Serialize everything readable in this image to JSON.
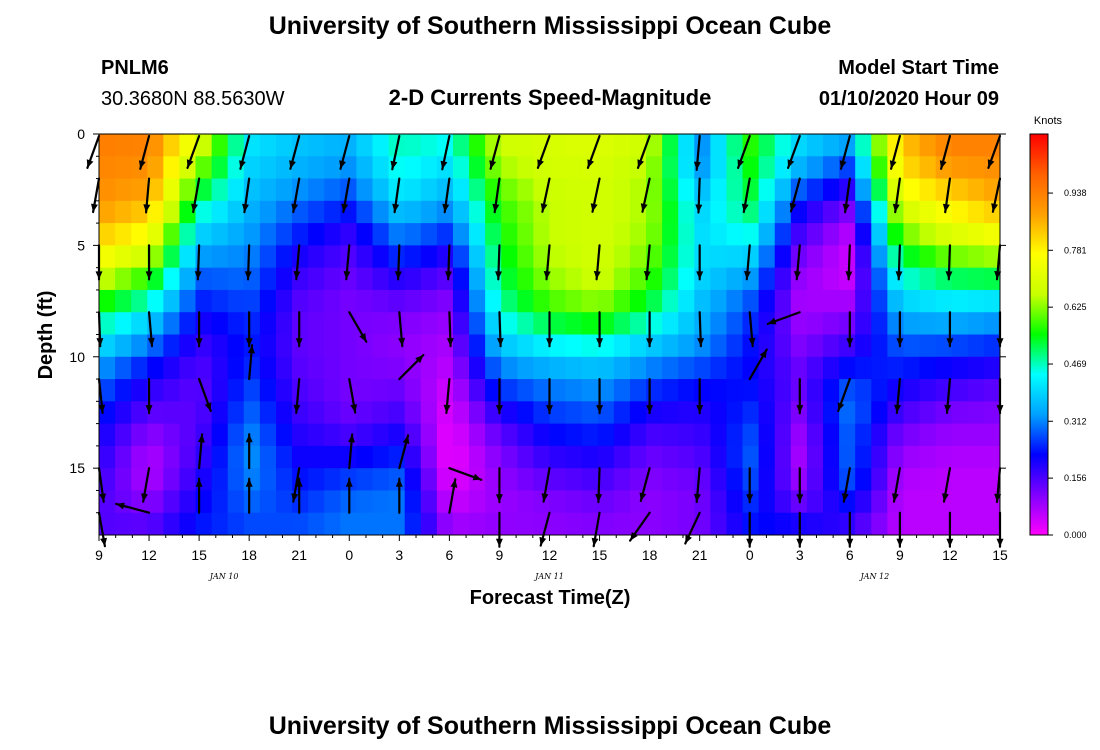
{
  "header": {
    "title": "University of Southern Mississippi Ocean Cube",
    "station_id": "PNLM6",
    "station_coords": "30.3680N 88.5630W",
    "chart_title": "2-D Currents Speed-Magnitude",
    "model_label": "Model Start Time",
    "model_time": "01/10/2020 Hour 09"
  },
  "footer": {
    "title": "University of Southern Mississippi Ocean Cube"
  },
  "colors": {
    "speed_scale": [
      "#ff00ff",
      "#8000ff",
      "#0000ff",
      "#00a0ff",
      "#00ffff",
      "#00ff00",
      "#c8ff00",
      "#ffff00",
      "#ffa000",
      "#ff6000",
      "#ff0000"
    ]
  },
  "chart_data": {
    "type": "heatmap",
    "title": "2-D Currents Speed-Magnitude",
    "xlabel": "Forecast Time(Z)",
    "ylabel": "Depth (ft)",
    "x_ticks": [
      "9",
      "12",
      "15",
      "18",
      "21",
      "0",
      "3",
      "6",
      "9",
      "12",
      "15",
      "18",
      "21",
      "0",
      "3",
      "6",
      "9",
      "12",
      "15"
    ],
    "x_date_labels": [
      {
        "label": "JAN 10",
        "at_tick": 2.5
      },
      {
        "label": "JAN 11",
        "at_tick": 9
      },
      {
        "label": "JAN 12",
        "at_tick": 15.5
      }
    ],
    "y_ticks": [
      "0",
      "5",
      "10",
      "15"
    ],
    "y_tick_values": [
      0,
      5,
      10,
      15
    ],
    "ylim": [
      0,
      18
    ],
    "y_inverted": true,
    "colorbar": {
      "unit": "Knots",
      "ticks": [
        "0.938",
        "0.781",
        "0.625",
        "0.469",
        "0.312",
        "0.156",
        "0.000"
      ],
      "tick_values": [
        0.938,
        0.781,
        0.625,
        0.469,
        0.312,
        0.156,
        0.0
      ],
      "range": [
        0.0,
        1.1
      ]
    },
    "depths_ft": [
      0,
      1,
      2,
      3,
      4,
      5,
      6,
      7,
      8,
      9,
      10,
      11,
      12,
      13,
      14,
      15,
      16,
      17,
      18
    ],
    "speed_knots_by_time": [
      [
        0.94,
        0.93,
        0.92,
        0.9,
        0.86,
        0.8,
        0.72,
        0.62,
        0.52,
        0.44,
        0.36,
        0.3,
        0.26,
        0.22,
        0.2,
        0.18,
        0.16,
        0.15,
        0.15
      ],
      [
        0.94,
        0.92,
        0.9,
        0.86,
        0.8,
        0.72,
        0.62,
        0.52,
        0.42,
        0.34,
        0.26,
        0.2,
        0.16,
        0.12,
        0.08,
        0.06,
        0.08,
        0.12,
        0.16
      ],
      [
        0.72,
        0.66,
        0.58,
        0.5,
        0.42,
        0.36,
        0.3,
        0.26,
        0.22,
        0.18,
        0.16,
        0.14,
        0.14,
        0.15,
        0.16,
        0.18,
        0.2,
        0.22,
        0.24
      ],
      [
        0.42,
        0.4,
        0.38,
        0.36,
        0.34,
        0.32,
        0.3,
        0.28,
        0.26,
        0.24,
        0.24,
        0.26,
        0.28,
        0.3,
        0.32,
        0.32,
        0.3,
        0.28,
        0.26
      ],
      [
        0.38,
        0.36,
        0.34,
        0.3,
        0.26,
        0.22,
        0.18,
        0.16,
        0.14,
        0.14,
        0.14,
        0.15,
        0.16,
        0.18,
        0.2,
        0.22,
        0.24,
        0.26,
        0.28
      ],
      [
        0.36,
        0.34,
        0.3,
        0.26,
        0.2,
        0.16,
        0.14,
        0.12,
        0.12,
        0.12,
        0.12,
        0.12,
        0.12,
        0.14,
        0.18,
        0.24,
        0.28,
        0.3,
        0.3
      ],
      [
        0.48,
        0.46,
        0.44,
        0.4,
        0.34,
        0.28,
        0.22,
        0.16,
        0.12,
        0.1,
        0.1,
        0.12,
        0.14,
        0.18,
        0.22,
        0.26,
        0.3,
        0.3,
        0.3
      ],
      [
        0.46,
        0.42,
        0.38,
        0.34,
        0.28,
        0.22,
        0.16,
        0.12,
        0.1,
        0.08,
        0.07,
        0.05,
        0.03,
        0.02,
        0.01,
        0.01,
        0.03,
        0.06,
        0.1
      ],
      [
        0.68,
        0.66,
        0.62,
        0.58,
        0.56,
        0.54,
        0.52,
        0.5,
        0.46,
        0.4,
        0.34,
        0.28,
        0.22,
        0.16,
        0.12,
        0.1,
        0.09,
        0.09,
        0.1
      ],
      [
        0.7,
        0.68,
        0.68,
        0.66,
        0.66,
        0.66,
        0.64,
        0.62,
        0.56,
        0.48,
        0.38,
        0.32,
        0.28,
        0.24,
        0.2,
        0.16,
        0.12,
        0.1,
        0.1
      ],
      [
        0.7,
        0.7,
        0.68,
        0.68,
        0.68,
        0.68,
        0.68,
        0.66,
        0.6,
        0.5,
        0.4,
        0.34,
        0.3,
        0.26,
        0.22,
        0.18,
        0.14,
        0.12,
        0.1
      ],
      [
        0.68,
        0.66,
        0.64,
        0.64,
        0.64,
        0.62,
        0.6,
        0.56,
        0.5,
        0.42,
        0.34,
        0.28,
        0.22,
        0.18,
        0.14,
        0.12,
        0.1,
        0.1,
        0.1
      ],
      [
        0.32,
        0.3,
        0.34,
        0.38,
        0.4,
        0.4,
        0.4,
        0.38,
        0.36,
        0.34,
        0.3,
        0.24,
        0.2,
        0.18,
        0.16,
        0.14,
        0.12,
        0.12,
        0.12
      ],
      [
        0.58,
        0.56,
        0.54,
        0.52,
        0.48,
        0.42,
        0.36,
        0.3,
        0.26,
        0.24,
        0.22,
        0.22,
        0.24,
        0.26,
        0.28,
        0.28,
        0.26,
        0.24,
        0.22
      ],
      [
        0.4,
        0.38,
        0.32,
        0.24,
        0.18,
        0.14,
        0.1,
        0.08,
        0.08,
        0.1,
        0.12,
        0.14,
        0.12,
        0.1,
        0.08,
        0.08,
        0.1,
        0.16,
        0.24
      ],
      [
        0.36,
        0.3,
        0.22,
        0.14,
        0.08,
        0.05,
        0.04,
        0.06,
        0.1,
        0.14,
        0.2,
        0.26,
        0.3,
        0.3,
        0.28,
        0.3,
        0.26,
        0.2,
        0.16
      ],
      [
        0.84,
        0.82,
        0.78,
        0.72,
        0.64,
        0.56,
        0.48,
        0.42,
        0.36,
        0.3,
        0.26,
        0.22,
        0.18,
        0.14,
        0.1,
        0.08,
        0.06,
        0.06,
        0.06
      ],
      [
        0.94,
        0.92,
        0.86,
        0.8,
        0.74,
        0.66,
        0.56,
        0.46,
        0.38,
        0.3,
        0.24,
        0.18,
        0.14,
        0.1,
        0.08,
        0.06,
        0.06,
        0.06,
        0.06
      ],
      [
        0.94,
        0.92,
        0.9,
        0.86,
        0.8,
        0.7,
        0.58,
        0.46,
        0.36,
        0.28,
        0.22,
        0.16,
        0.12,
        0.1,
        0.08,
        0.06,
        0.06,
        0.06,
        0.06
      ]
    ],
    "vectors": [
      [
        [
          0,
          -160
        ],
        [
          2,
          -170
        ],
        [
          5,
          -180
        ],
        [
          8,
          -182
        ],
        [
          11,
          -186
        ],
        [
          15,
          -188
        ],
        [
          17,
          -190
        ]
      ],
      [
        [
          0,
          -165
        ],
        [
          2,
          -175
        ],
        [
          5,
          -180
        ],
        [
          8,
          -185
        ],
        [
          11,
          -180
        ],
        [
          15,
          -170
        ],
        [
          17,
          -75
        ]
      ],
      [
        [
          0,
          -160
        ],
        [
          2,
          -170
        ],
        [
          5,
          -178
        ],
        [
          8,
          -180
        ],
        [
          11,
          160
        ],
        [
          15,
          5
        ],
        [
          17,
          0
        ]
      ],
      [
        [
          0,
          -165
        ],
        [
          2,
          -172
        ],
        [
          5,
          -178
        ],
        [
          8,
          -180
        ],
        [
          11,
          5
        ],
        [
          15,
          0
        ],
        [
          17,
          0
        ]
      ],
      [
        [
          0,
          -165
        ],
        [
          2,
          -170
        ],
        [
          5,
          -175
        ],
        [
          8,
          -180
        ],
        [
          11,
          -175
        ],
        [
          15,
          -170
        ],
        [
          17,
          0
        ]
      ],
      [
        [
          0,
          -165
        ],
        [
          2,
          -170
        ],
        [
          5,
          -175
        ],
        [
          8,
          150
        ],
        [
          11,
          170
        ],
        [
          15,
          5
        ],
        [
          17,
          0
        ]
      ],
      [
        [
          0,
          -168
        ],
        [
          2,
          -172
        ],
        [
          5,
          -178
        ],
        [
          8,
          -185
        ],
        [
          11,
          45
        ],
        [
          15,
          15
        ],
        [
          17,
          0
        ]
      ],
      [
        [
          0,
          -168
        ],
        [
          2,
          -172
        ],
        [
          5,
          -178
        ],
        [
          8,
          -182
        ],
        [
          11,
          -175
        ],
        [
          15,
          110
        ],
        [
          17,
          10
        ]
      ],
      [
        [
          0,
          -165
        ],
        [
          2,
          -172
        ],
        [
          5,
          -178
        ],
        [
          8,
          -182
        ],
        [
          11,
          -180
        ],
        [
          15,
          -180
        ],
        [
          17,
          -180
        ]
      ],
      [
        [
          0,
          -160
        ],
        [
          2,
          -168
        ],
        [
          5,
          -175
        ],
        [
          8,
          -180
        ],
        [
          11,
          -180
        ],
        [
          15,
          -170
        ],
        [
          17,
          -165
        ]
      ],
      [
        [
          0,
          -160
        ],
        [
          2,
          -168
        ],
        [
          5,
          -175
        ],
        [
          8,
          -180
        ],
        [
          11,
          -180
        ],
        [
          15,
          -178
        ],
        [
          17,
          -170
        ]
      ],
      [
        [
          0,
          -160
        ],
        [
          2,
          -168
        ],
        [
          5,
          -175
        ],
        [
          8,
          -180
        ],
        [
          11,
          -180
        ],
        [
          15,
          -165
        ],
        [
          17,
          -145
        ]
      ],
      [
        [
          0,
          -175
        ],
        [
          2,
          -178
        ],
        [
          5,
          -180
        ],
        [
          8,
          -182
        ],
        [
          11,
          -180
        ],
        [
          15,
          -175
        ],
        [
          17,
          -155
        ]
      ],
      [
        [
          0,
          -160
        ],
        [
          2,
          -170
        ],
        [
          5,
          -175
        ],
        [
          8,
          -185
        ],
        [
          11,
          30
        ],
        [
          15,
          -180
        ],
        [
          17,
          -180
        ]
      ],
      [
        [
          0,
          -160
        ],
        [
          2,
          -165
        ],
        [
          5,
          -175
        ],
        [
          8,
          -110
        ],
        [
          11,
          -180
        ],
        [
          15,
          -180
        ],
        [
          17,
          -180
        ]
      ],
      [
        [
          0,
          -165
        ],
        [
          2,
          -172
        ],
        [
          5,
          -178
        ],
        [
          8,
          -180
        ],
        [
          11,
          -160
        ],
        [
          15,
          -170
        ],
        [
          17,
          -180
        ]
      ],
      [
        [
          0,
          -165
        ],
        [
          2,
          -172
        ],
        [
          5,
          -178
        ],
        [
          8,
          -180
        ],
        [
          11,
          -175
        ],
        [
          15,
          -170
        ],
        [
          17,
          -180
        ]
      ],
      [
        [
          0,
          -165
        ],
        [
          2,
          -172
        ],
        [
          5,
          -178
        ],
        [
          8,
          -180
        ],
        [
          11,
          -175
        ],
        [
          15,
          -170
        ],
        [
          17,
          -180
        ]
      ],
      [
        [
          0,
          -160
        ],
        [
          2,
          -168
        ],
        [
          5,
          -175
        ],
        [
          8,
          -180
        ],
        [
          11,
          -180
        ],
        [
          15,
          -175
        ],
        [
          17,
          -180
        ]
      ]
    ]
  }
}
